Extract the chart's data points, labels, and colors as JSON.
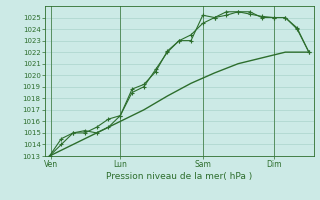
{
  "title": "",
  "xlabel": "Pression niveau de la mer( hPa )",
  "ylabel": "",
  "bg_color": "#cceae6",
  "grid_color": "#aad4cc",
  "line_color": "#2d6e2d",
  "ylim": [
    1013,
    1026
  ],
  "yticks": [
    1013,
    1014,
    1015,
    1016,
    1017,
    1018,
    1019,
    1020,
    1021,
    1022,
    1023,
    1024,
    1025
  ],
  "day_labels": [
    "Ven",
    "Lun",
    "Sam",
    "Dim"
  ],
  "day_positions": [
    0.08,
    3.0,
    6.5,
    9.5
  ],
  "xlim": [
    -0.2,
    11.2
  ],
  "line1_x": [
    0,
    0.5,
    1.0,
    1.5,
    2.0,
    2.5,
    3.0,
    3.5,
    4.0,
    4.5,
    5.0,
    5.5,
    6.0,
    6.5,
    7.0,
    7.5,
    8.0,
    8.5,
    9.0,
    9.5,
    10.0,
    10.5,
    11.0
  ],
  "line1_y": [
    1013,
    1014,
    1015,
    1015.2,
    1015.0,
    1015.5,
    1016.5,
    1018.8,
    1019.2,
    1020.3,
    1022.1,
    1023.0,
    1023.0,
    1025.2,
    1025.0,
    1025.2,
    1025.5,
    1025.3,
    1025.1,
    1025.0,
    1025.0,
    1024.1,
    1022.0
  ],
  "line2_x": [
    0,
    0.5,
    1.0,
    1.5,
    2.0,
    2.5,
    3.0,
    3.5,
    4.0,
    4.5,
    5.0,
    5.5,
    6.0,
    6.5,
    7.0,
    7.5,
    8.0,
    8.5,
    9.0,
    9.5,
    10.0,
    10.5,
    11.0
  ],
  "line2_y": [
    1013,
    1014.5,
    1015.0,
    1015.0,
    1015.5,
    1016.2,
    1016.5,
    1018.5,
    1019.0,
    1020.5,
    1022.0,
    1023.0,
    1023.5,
    1024.5,
    1025.0,
    1025.5,
    1025.5,
    1025.5,
    1025.0,
    1025.0,
    1025.0,
    1024.0,
    1022.0
  ],
  "line3_x": [
    0,
    1.0,
    2.0,
    3.0,
    4.0,
    5.0,
    6.0,
    7.0,
    8.0,
    9.0,
    10.0,
    11.0
  ],
  "line3_y": [
    1013.0,
    1014.0,
    1015.0,
    1016.0,
    1017.0,
    1018.2,
    1019.3,
    1020.2,
    1021.0,
    1021.5,
    1022.0,
    1022.0
  ]
}
